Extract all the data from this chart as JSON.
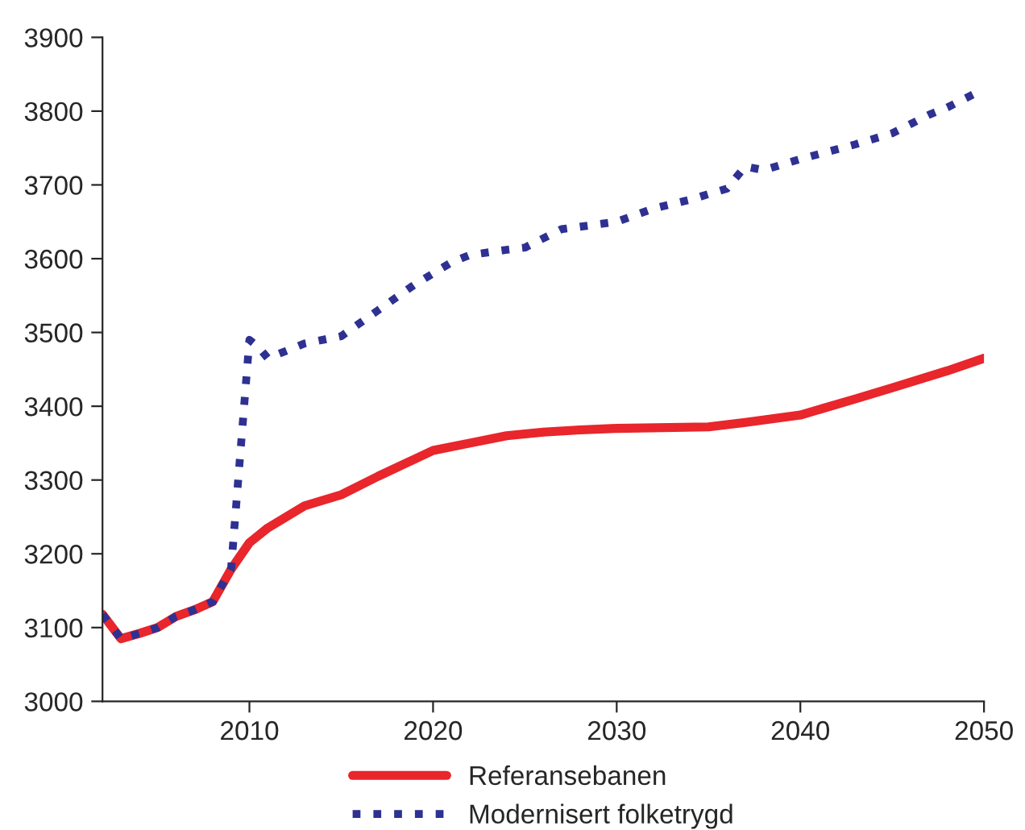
{
  "chart_data": {
    "type": "line",
    "xlim": [
      2002,
      2050
    ],
    "ylim": [
      3000,
      3900
    ],
    "xticks": [
      2010,
      2020,
      2030,
      2040,
      2050
    ],
    "yticks": [
      3000,
      3100,
      3200,
      3300,
      3400,
      3500,
      3600,
      3700,
      3800,
      3900
    ],
    "grid": false,
    "legend": "bottom",
    "series": [
      {
        "name": "Referansebanen",
        "color": "#e8262b",
        "line_style": "solid",
        "x": [
          2002,
          2003,
          2004,
          2005,
          2006,
          2007,
          2008,
          2009,
          2010,
          2011,
          2012,
          2013,
          2015,
          2017,
          2020,
          2022,
          2024,
          2026,
          2028,
          2030,
          2035,
          2037,
          2040,
          2043,
          2045,
          2048,
          2050
        ],
        "values": [
          3118,
          3085,
          3092,
          3100,
          3115,
          3124,
          3135,
          3179,
          3215,
          3235,
          3250,
          3265,
          3280,
          3305,
          3340,
          3350,
          3360,
          3365,
          3368,
          3370,
          3372,
          3378,
          3388,
          3410,
          3425,
          3448,
          3465
        ]
      },
      {
        "name": "Modernisert folketrygd",
        "color": "#2e3192",
        "line_style": "dotted",
        "x": [
          2002,
          2003,
          2004,
          2005,
          2006,
          2007,
          2008,
          2009,
          2010,
          2010.5,
          2011,
          2012,
          2013,
          2015,
          2017,
          2019,
          2021,
          2022,
          2024,
          2025,
          2027,
          2030,
          2032,
          2034,
          2036,
          2037,
          2038,
          2040,
          2043,
          2045,
          2047,
          2048,
          2050
        ],
        "values": [
          3118,
          3085,
          3092,
          3100,
          3115,
          3124,
          3135,
          3179,
          3490,
          3480,
          3465,
          3475,
          3485,
          3495,
          3530,
          3565,
          3595,
          3605,
          3612,
          3615,
          3640,
          3650,
          3668,
          3680,
          3695,
          3725,
          3720,
          3735,
          3755,
          3770,
          3795,
          3805,
          3830
        ]
      }
    ]
  }
}
